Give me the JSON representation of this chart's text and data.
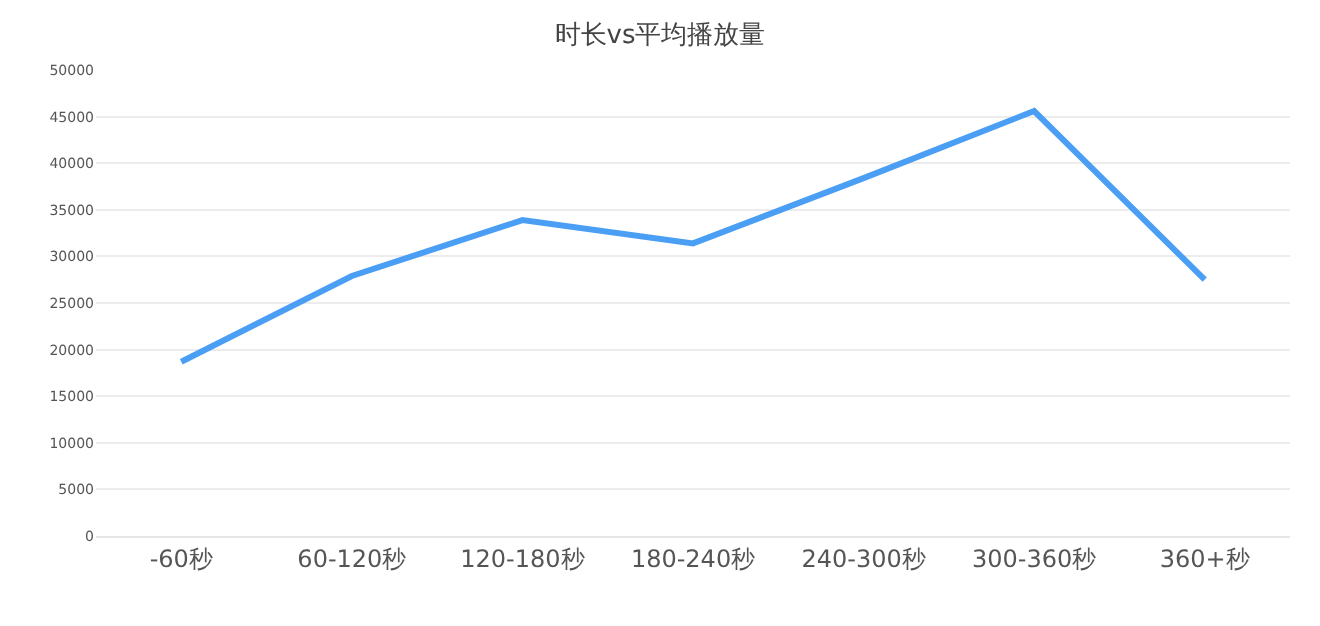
{
  "chart_data": {
    "type": "line",
    "title": "时长vs平均播放量",
    "categories": [
      "-60秒",
      "60-120秒",
      "120-180秒",
      "180-240秒",
      "240-300秒",
      "300-360秒",
      "360+秒"
    ],
    "series": [
      {
        "color": "#4a9ff5",
        "values": [
          18700,
          27900,
          33900,
          31400,
          38400,
          45600,
          27500
        ]
      }
    ],
    "ylim": [
      0,
      50000
    ],
    "yticks": [
      0,
      5000,
      10000,
      15000,
      20000,
      25000,
      30000,
      35000,
      40000,
      45000,
      50000
    ],
    "grid": "y",
    "marker": "none",
    "line_style": "solid"
  }
}
